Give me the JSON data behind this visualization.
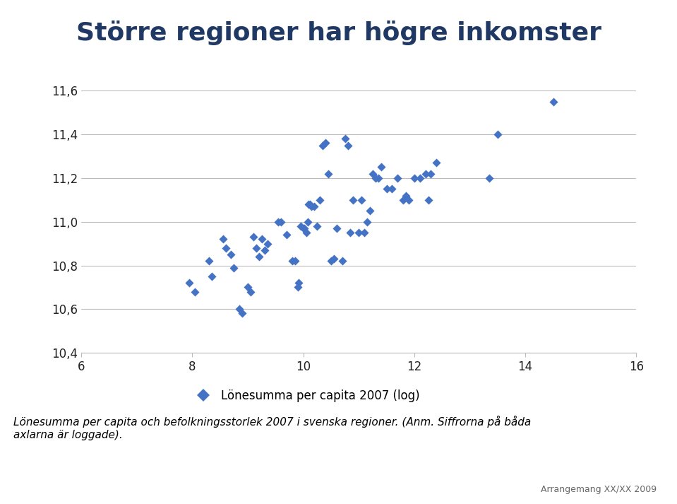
{
  "title": "Större regioner har högre inkomster",
  "title_color": "#1F3864",
  "title_fontsize": 26,
  "legend_label": "Lönesumma per capita 2007 (log)",
  "footnote": "Lönesumma per capita och befolkningsstorlek 2007 i svenska regioner. (Anm. Siffrorna på båda\naxlarna är loggade).",
  "footnote2": "Arrangemang XX/XX 2009",
  "xlim": [
    6,
    16
  ],
  "ylim": [
    10.4,
    11.6
  ],
  "xticks": [
    6,
    8,
    10,
    12,
    14,
    16
  ],
  "yticks": [
    10.4,
    10.6,
    10.8,
    11.0,
    11.2,
    11.4,
    11.6
  ],
  "marker_color": "#4472C4",
  "background_color": "#FFFFFF",
  "x": [
    7.95,
    8.05,
    8.3,
    8.35,
    8.55,
    8.6,
    8.7,
    8.75,
    8.85,
    8.9,
    9.0,
    9.05,
    9.1,
    9.15,
    9.2,
    9.25,
    9.3,
    9.35,
    9.55,
    9.6,
    9.7,
    9.8,
    9.85,
    9.9,
    9.92,
    9.95,
    10.0,
    10.02,
    10.05,
    10.08,
    10.1,
    10.12,
    10.15,
    10.2,
    10.25,
    10.3,
    10.35,
    10.4,
    10.45,
    10.5,
    10.55,
    10.6,
    10.7,
    10.75,
    10.8,
    10.85,
    10.9,
    11.0,
    11.05,
    11.1,
    11.15,
    11.2,
    11.25,
    11.3,
    11.35,
    11.4,
    11.5,
    11.6,
    11.7,
    11.8,
    11.85,
    11.9,
    12.0,
    12.1,
    12.2,
    12.25,
    12.3,
    12.4,
    13.35,
    13.5,
    14.5
  ],
  "y": [
    10.72,
    10.68,
    10.82,
    10.75,
    10.92,
    10.88,
    10.85,
    10.79,
    10.6,
    10.58,
    10.7,
    10.68,
    10.93,
    10.88,
    10.84,
    10.92,
    10.87,
    10.9,
    11.0,
    11.0,
    10.94,
    10.82,
    10.82,
    10.7,
    10.72,
    10.98,
    10.97,
    10.97,
    10.95,
    11.0,
    11.08,
    11.08,
    11.07,
    11.07,
    10.98,
    11.1,
    11.35,
    11.36,
    11.22,
    10.82,
    10.83,
    10.97,
    10.82,
    11.38,
    11.35,
    10.95,
    11.1,
    10.95,
    11.1,
    10.95,
    11.0,
    11.05,
    11.22,
    11.2,
    11.2,
    11.25,
    11.15,
    11.15,
    11.2,
    11.1,
    11.12,
    11.1,
    11.2,
    11.2,
    11.22,
    11.1,
    11.22,
    11.27,
    11.2,
    11.4,
    11.55
  ]
}
